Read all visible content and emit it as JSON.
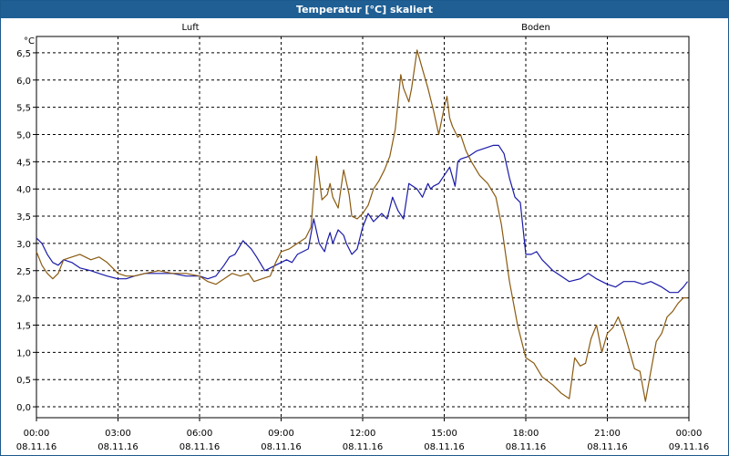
{
  "window": {
    "title": "Temperatur [°C] skaliert"
  },
  "chart_data": {
    "type": "line",
    "title": "Temperatur [°C] skaliert",
    "ylabel": "°C",
    "xlabel": "",
    "ylim": [
      -0.2,
      6.8
    ],
    "xlim": [
      0,
      24
    ],
    "grid": true,
    "legend": "top-center",
    "y_ticks": [
      "6,5",
      "6,0",
      "5,5",
      "5,0",
      "4,5",
      "4,0",
      "3,5",
      "3,0",
      "2,5",
      "2,0",
      "1,5",
      "1,0",
      "0,5",
      "0,0"
    ],
    "y_tick_values": [
      6.5,
      6.0,
      5.5,
      5.0,
      4.5,
      4.0,
      3.5,
      3.0,
      2.5,
      2.0,
      1.5,
      1.0,
      0.5,
      0.0
    ],
    "x_ticks": [
      {
        "time": "00:00",
        "date": "08.11.16",
        "hour": 0
      },
      {
        "time": "03:00",
        "date": "08.11.16",
        "hour": 3
      },
      {
        "time": "06:00",
        "date": "08.11.16",
        "hour": 6
      },
      {
        "time": "09:00",
        "date": "08.11.16",
        "hour": 9
      },
      {
        "time": "12:00",
        "date": "08.11.16",
        "hour": 12
      },
      {
        "time": "15:00",
        "date": "08.11.16",
        "hour": 15
      },
      {
        "time": "18:00",
        "date": "08.11.16",
        "hour": 18
      },
      {
        "time": "21:00",
        "date": "08.11.16",
        "hour": 21
      },
      {
        "time": "00:00",
        "date": "09.11.16",
        "hour": 24
      }
    ],
    "series": [
      {
        "name": "Luft",
        "color": "#1a1aa8",
        "x": [
          0,
          0.2,
          0.4,
          0.6,
          0.8,
          1.0,
          1.3,
          1.6,
          2.0,
          2.3,
          2.6,
          3.0,
          3.3,
          3.6,
          4.0,
          4.5,
          5.0,
          5.5,
          6.0,
          6.3,
          6.6,
          6.9,
          7.1,
          7.3,
          7.6,
          7.9,
          8.1,
          8.4,
          8.6,
          8.8,
          9.0,
          9.2,
          9.4,
          9.6,
          9.8,
          10.0,
          10.2,
          10.4,
          10.6,
          10.7,
          10.8,
          10.9,
          11.1,
          11.3,
          11.4,
          11.6,
          11.8,
          11.9,
          12.0,
          12.2,
          12.4,
          12.6,
          12.7,
          12.9,
          13.1,
          13.3,
          13.5,
          13.7,
          14.0,
          14.2,
          14.4,
          14.5,
          14.6,
          14.8,
          15.0,
          15.2,
          15.4,
          15.5,
          15.6,
          15.9,
          16.2,
          16.5,
          16.8,
          17.0,
          17.2,
          17.4,
          17.6,
          17.8,
          18.0,
          18.2,
          18.4,
          18.6,
          18.8,
          19.0,
          19.3,
          19.6,
          20.0,
          20.3,
          20.6,
          21.0,
          21.3,
          21.6,
          22.0,
          22.3,
          22.6,
          23.0,
          23.3,
          23.6,
          23.8,
          23.95
        ],
        "y": [
          3.1,
          3.0,
          2.8,
          2.65,
          2.6,
          2.7,
          2.65,
          2.55,
          2.5,
          2.45,
          2.4,
          2.35,
          2.35,
          2.4,
          2.45,
          2.45,
          2.45,
          2.4,
          2.4,
          2.35,
          2.4,
          2.6,
          2.75,
          2.8,
          3.05,
          2.9,
          2.75,
          2.5,
          2.55,
          2.6,
          2.65,
          2.7,
          2.65,
          2.8,
          2.85,
          2.9,
          3.45,
          3.0,
          2.85,
          3.05,
          3.2,
          3.0,
          3.25,
          3.15,
          3.0,
          2.8,
          2.9,
          3.1,
          3.3,
          3.55,
          3.4,
          3.5,
          3.55,
          3.45,
          3.85,
          3.6,
          3.45,
          4.1,
          4.0,
          3.85,
          4.1,
          4.0,
          4.05,
          4.1,
          4.25,
          4.4,
          4.05,
          4.5,
          4.55,
          4.6,
          4.7,
          4.75,
          4.8,
          4.8,
          4.65,
          4.2,
          3.85,
          3.75,
          2.8,
          2.8,
          2.85,
          2.7,
          2.6,
          2.5,
          2.4,
          2.3,
          2.35,
          2.45,
          2.35,
          2.25,
          2.2,
          2.3,
          2.3,
          2.25,
          2.3,
          2.2,
          2.1,
          2.1,
          2.2,
          2.3
        ]
      },
      {
        "name": "Boden",
        "color": "#8a5a10",
        "x": [
          0,
          0.2,
          0.4,
          0.6,
          0.8,
          1.0,
          1.3,
          1.6,
          2.0,
          2.3,
          2.6,
          3.0,
          3.3,
          3.6,
          4.0,
          4.5,
          5.0,
          5.5,
          6.0,
          6.3,
          6.6,
          6.9,
          7.2,
          7.5,
          7.8,
          8.0,
          8.3,
          8.6,
          8.8,
          9.0,
          9.3,
          9.6,
          9.9,
          10.1,
          10.3,
          10.5,
          10.7,
          10.8,
          10.9,
          11.1,
          11.2,
          11.3,
          11.5,
          11.6,
          11.8,
          12.0,
          12.2,
          12.4,
          12.6,
          12.8,
          13.0,
          13.2,
          13.4,
          13.5,
          13.7,
          13.8,
          14.0,
          14.2,
          14.4,
          14.6,
          14.8,
          15.0,
          15.1,
          15.2,
          15.3,
          15.5,
          15.6,
          15.8,
          16.0,
          16.3,
          16.6,
          16.9,
          17.1,
          17.4,
          17.7,
          18.0,
          18.3,
          18.6,
          19.0,
          19.3,
          19.6,
          19.8,
          20.0,
          20.2,
          20.4,
          20.6,
          20.8,
          21.0,
          21.2,
          21.4,
          21.6,
          21.8,
          22.0,
          22.2,
          22.4,
          22.6,
          22.8,
          23.0,
          23.2,
          23.4,
          23.6,
          23.8,
          23.95
        ],
        "y": [
          2.85,
          2.6,
          2.45,
          2.35,
          2.45,
          2.7,
          2.75,
          2.8,
          2.7,
          2.75,
          2.65,
          2.45,
          2.4,
          2.4,
          2.45,
          2.5,
          2.45,
          2.45,
          2.4,
          2.3,
          2.25,
          2.35,
          2.45,
          2.4,
          2.45,
          2.3,
          2.35,
          2.4,
          2.65,
          2.85,
          2.9,
          3.0,
          3.1,
          3.3,
          4.6,
          3.8,
          3.9,
          4.1,
          3.85,
          3.65,
          4.0,
          4.35,
          3.9,
          3.5,
          3.45,
          3.55,
          3.7,
          4.0,
          4.15,
          4.35,
          4.6,
          5.1,
          6.1,
          5.85,
          5.6,
          5.85,
          6.55,
          6.2,
          5.85,
          5.45,
          5.0,
          5.5,
          5.7,
          5.3,
          5.15,
          4.95,
          5.0,
          4.7,
          4.5,
          4.25,
          4.1,
          3.85,
          3.35,
          2.3,
          1.5,
          0.9,
          0.8,
          0.55,
          0.4,
          0.25,
          0.15,
          0.9,
          0.75,
          0.8,
          1.25,
          1.5,
          1.0,
          1.35,
          1.45,
          1.65,
          1.4,
          1.05,
          0.7,
          0.65,
          0.1,
          0.65,
          1.2,
          1.35,
          1.65,
          1.75,
          1.9,
          2.0,
          2.0
        ]
      }
    ]
  }
}
